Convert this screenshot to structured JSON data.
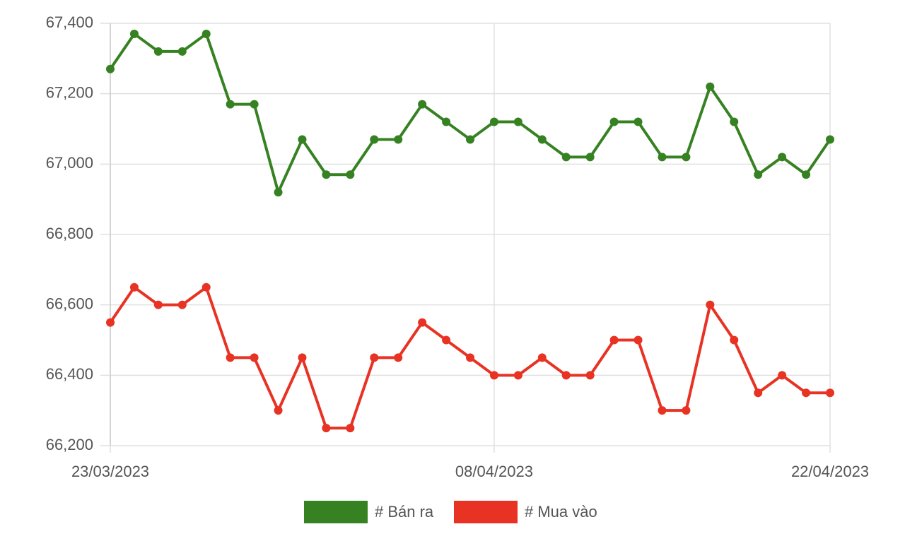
{
  "chart_data": {
    "type": "line",
    "categories": [
      "23/03/2023",
      null,
      null,
      null,
      null,
      null,
      null,
      null,
      null,
      null,
      null,
      null,
      null,
      null,
      null,
      null,
      "08/04/2023",
      null,
      null,
      null,
      null,
      null,
      null,
      null,
      null,
      null,
      null,
      null,
      null,
      null,
      "22/04/2023"
    ],
    "series": [
      {
        "name": "# Bán ra",
        "color": "#368222",
        "values": [
          67270,
          67370,
          67320,
          67320,
          67370,
          67170,
          67170,
          66920,
          67070,
          66970,
          66970,
          67070,
          67070,
          67170,
          67120,
          67070,
          67120,
          67120,
          67070,
          67020,
          67020,
          67120,
          67120,
          67020,
          67020,
          67220,
          67120,
          66970,
          67020,
          66970,
          67070
        ]
      },
      {
        "name": "# Mua vào",
        "color": "#e83223",
        "values": [
          66550,
          66650,
          66600,
          66600,
          66650,
          66450,
          66450,
          66300,
          66450,
          66250,
          66250,
          66450,
          66450,
          66550,
          66500,
          66450,
          66400,
          66400,
          66450,
          66400,
          66400,
          66500,
          66500,
          66300,
          66300,
          66600,
          66500,
          66350,
          66400,
          66350,
          66350
        ]
      }
    ],
    "ylim": [
      66200,
      67400
    ],
    "yticks": [
      {
        "value": 66200,
        "label": "66,200"
      },
      {
        "value": 66400,
        "label": "66,400"
      },
      {
        "value": 66600,
        "label": "66,600"
      },
      {
        "value": 66800,
        "label": "66,800"
      },
      {
        "value": 67000,
        "label": "67,000"
      },
      {
        "value": 67200,
        "label": "67,200"
      },
      {
        "value": 67400,
        "label": "67,400"
      }
    ],
    "grid": true,
    "legend": "bottom"
  }
}
